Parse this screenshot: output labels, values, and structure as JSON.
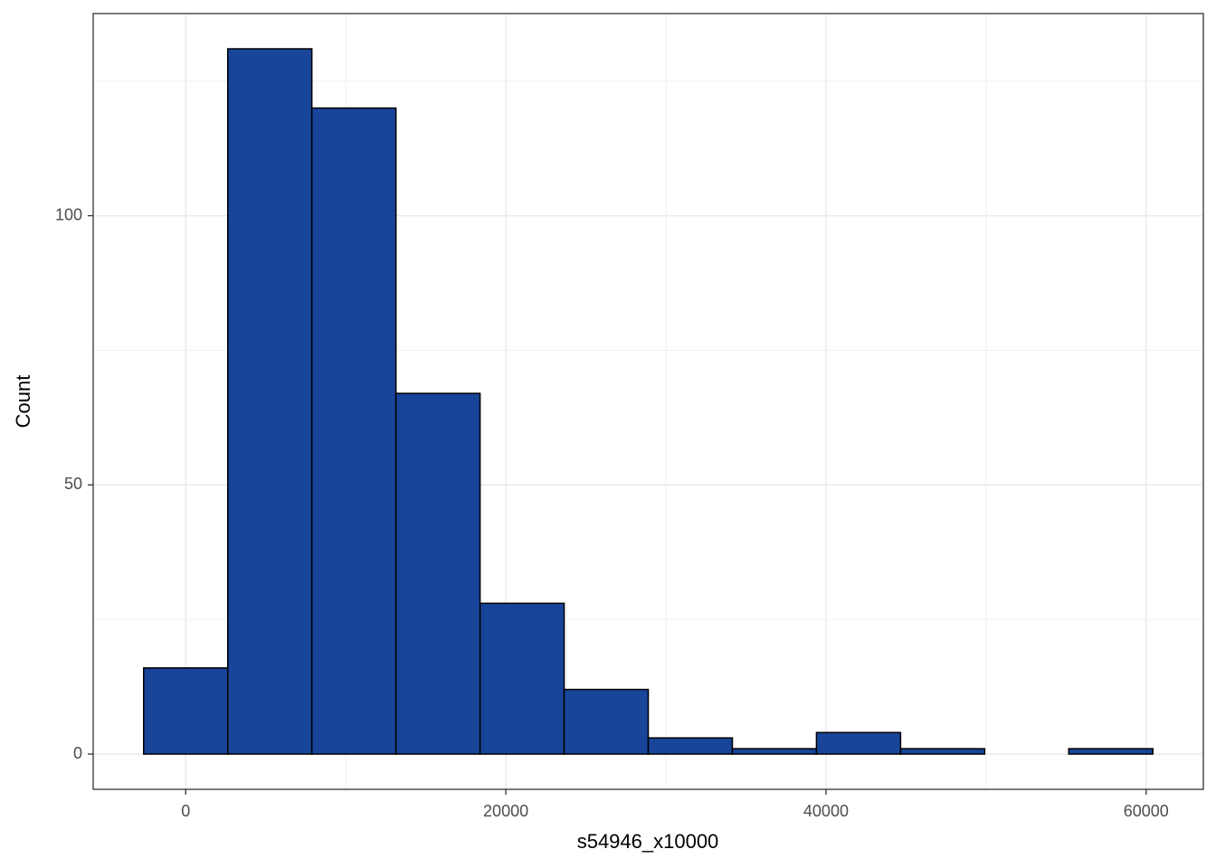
{
  "chart_data": {
    "type": "histogram",
    "xlabel": "s54946_x10000",
    "ylabel": "Count",
    "bins": [
      -2627,
      2627,
      7881,
      13135,
      18389,
      23643,
      28897,
      34151,
      39405,
      44659,
      49913,
      55167,
      60421
    ],
    "values": [
      16,
      131,
      120,
      67,
      28,
      12,
      3,
      1,
      4,
      1,
      0,
      1
    ],
    "color": "#18449a",
    "edgecolor": "#000000",
    "xlim": [
      -5779,
      63573
    ],
    "xticks": [
      0,
      20000,
      40000,
      60000
    ],
    "xminor": [
      10000,
      30000,
      50000
    ],
    "ylim": [
      -6.55,
      137.55
    ],
    "yticks": [
      0,
      50,
      100
    ],
    "yminor": [
      25,
      75,
      125
    ],
    "grid": true
  }
}
